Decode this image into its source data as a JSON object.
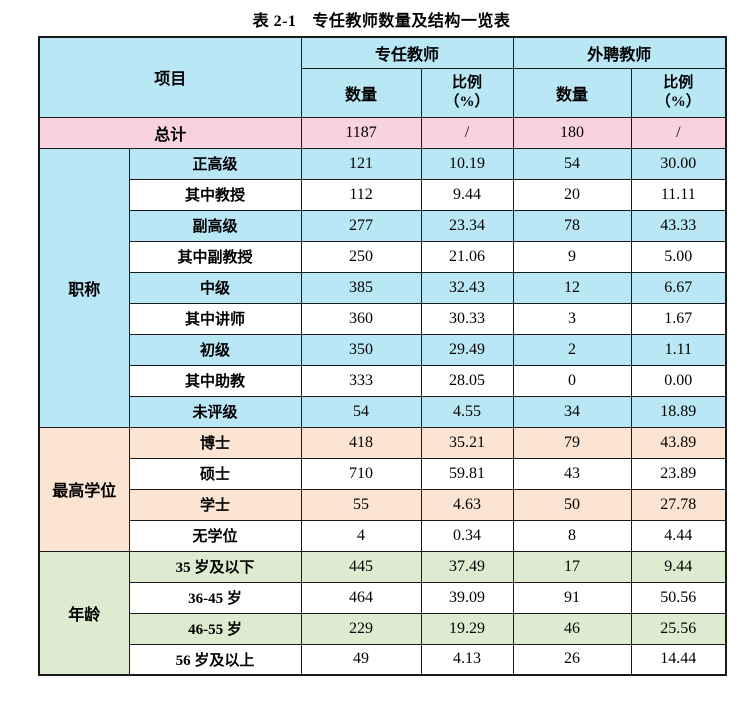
{
  "page_title": {
    "prefix": "表 2-1",
    "text": "专任教师数量及结构一览表"
  },
  "header": {
    "item": "项目",
    "col_groups": [
      {
        "label": "专任教师"
      },
      {
        "label": "外聘教师"
      }
    ],
    "sub_cols": {
      "qty": "数量",
      "pct": "比例",
      "pct_unit": "（%）"
    }
  },
  "total_row": {
    "label": "总计",
    "values": [
      "1187",
      "/",
      "180",
      "/"
    ]
  },
  "sections": [
    {
      "group": "职称",
      "theme": "blue",
      "rows": [
        {
          "label": "正高级",
          "values": [
            "121",
            "10.19",
            "54",
            "30.00"
          ]
        },
        {
          "label": "其中教授",
          "values": [
            "112",
            "9.44",
            "20",
            "11.11"
          ]
        },
        {
          "label": "副高级",
          "values": [
            "277",
            "23.34",
            "78",
            "43.33"
          ]
        },
        {
          "label": "其中副教授",
          "values": [
            "250",
            "21.06",
            "9",
            "5.00"
          ]
        },
        {
          "label": "中级",
          "values": [
            "385",
            "32.43",
            "12",
            "6.67"
          ]
        },
        {
          "label": "其中讲师",
          "values": [
            "360",
            "30.33",
            "3",
            "1.67"
          ]
        },
        {
          "label": "初级",
          "values": [
            "350",
            "29.49",
            "2",
            "1.11"
          ]
        },
        {
          "label": "其中助教",
          "values": [
            "333",
            "28.05",
            "0",
            "0.00"
          ]
        },
        {
          "label": "未评级",
          "values": [
            "54",
            "4.55",
            "34",
            "18.89"
          ]
        }
      ]
    },
    {
      "group": "最高学位",
      "theme": "peach",
      "rows": [
        {
          "label": "博士",
          "values": [
            "418",
            "35.21",
            "79",
            "43.89"
          ]
        },
        {
          "label": "硕士",
          "values": [
            "710",
            "59.81",
            "43",
            "23.89"
          ]
        },
        {
          "label": "学士",
          "values": [
            "55",
            "4.63",
            "50",
            "27.78"
          ]
        },
        {
          "label": "无学位",
          "values": [
            "4",
            "0.34",
            "8",
            "4.44"
          ]
        }
      ]
    },
    {
      "group": "年龄",
      "theme": "green",
      "rows": [
        {
          "label": "35 岁及以下",
          "values": [
            "445",
            "37.49",
            "17",
            "9.44"
          ]
        },
        {
          "label": "36-45 岁",
          "values": [
            "464",
            "39.09",
            "91",
            "50.56"
          ]
        },
        {
          "label": "46-55 岁",
          "values": [
            "229",
            "19.29",
            "46",
            "25.56"
          ]
        },
        {
          "label": "56 岁及以上",
          "values": [
            "49",
            "4.13",
            "26",
            "14.44"
          ]
        }
      ]
    }
  ],
  "colors": {
    "header_blue": "#b9e7f5",
    "total_pink": "#f8d3dd",
    "blue": "#b9e7f5",
    "peach": "#fce4d2",
    "green": "#ddecd0",
    "border": "#1a1a1a"
  }
}
